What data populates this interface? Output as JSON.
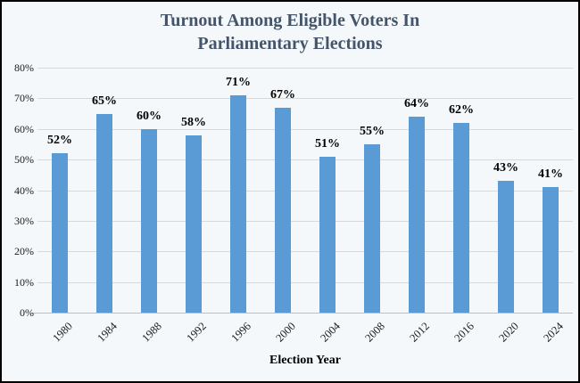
{
  "window": {
    "background_color": "#f4f8fb",
    "border_color": "#000000"
  },
  "chart_data": {
    "type": "bar",
    "title": "Turnout Among Eligible Voters In Parliamentary Elections",
    "title_lines": [
      "Turnout Among Eligible Voters In",
      "Parliamentary Elections"
    ],
    "categories": [
      "1980",
      "1984",
      "1988",
      "1992",
      "1996",
      "2000",
      "2004",
      "2008",
      "2012",
      "2016",
      "2020",
      "2024"
    ],
    "values": [
      52,
      65,
      60,
      58,
      71,
      67,
      51,
      55,
      64,
      62,
      43,
      41
    ],
    "data_labels": [
      "52%",
      "65%",
      "60%",
      "58%",
      "71%",
      "67%",
      "51%",
      "55%",
      "64%",
      "62%",
      "43%",
      "41%"
    ],
    "xlabel": "Election Year",
    "ylabel": "",
    "ylim": [
      0,
      80
    ],
    "ytick_step": 10,
    "ytick_labels": [
      "0%",
      "10%",
      "20%",
      "30%",
      "40%",
      "50%",
      "60%",
      "70%",
      "80%"
    ],
    "grid": true,
    "legend": "none",
    "colors": {
      "bar": "#5b9bd5",
      "gridline": "#d9d9d9",
      "axis_line": "#bfbfbf",
      "title": "#44546a",
      "tick_label": "#1a1a1a",
      "data_label": "#000000"
    }
  }
}
